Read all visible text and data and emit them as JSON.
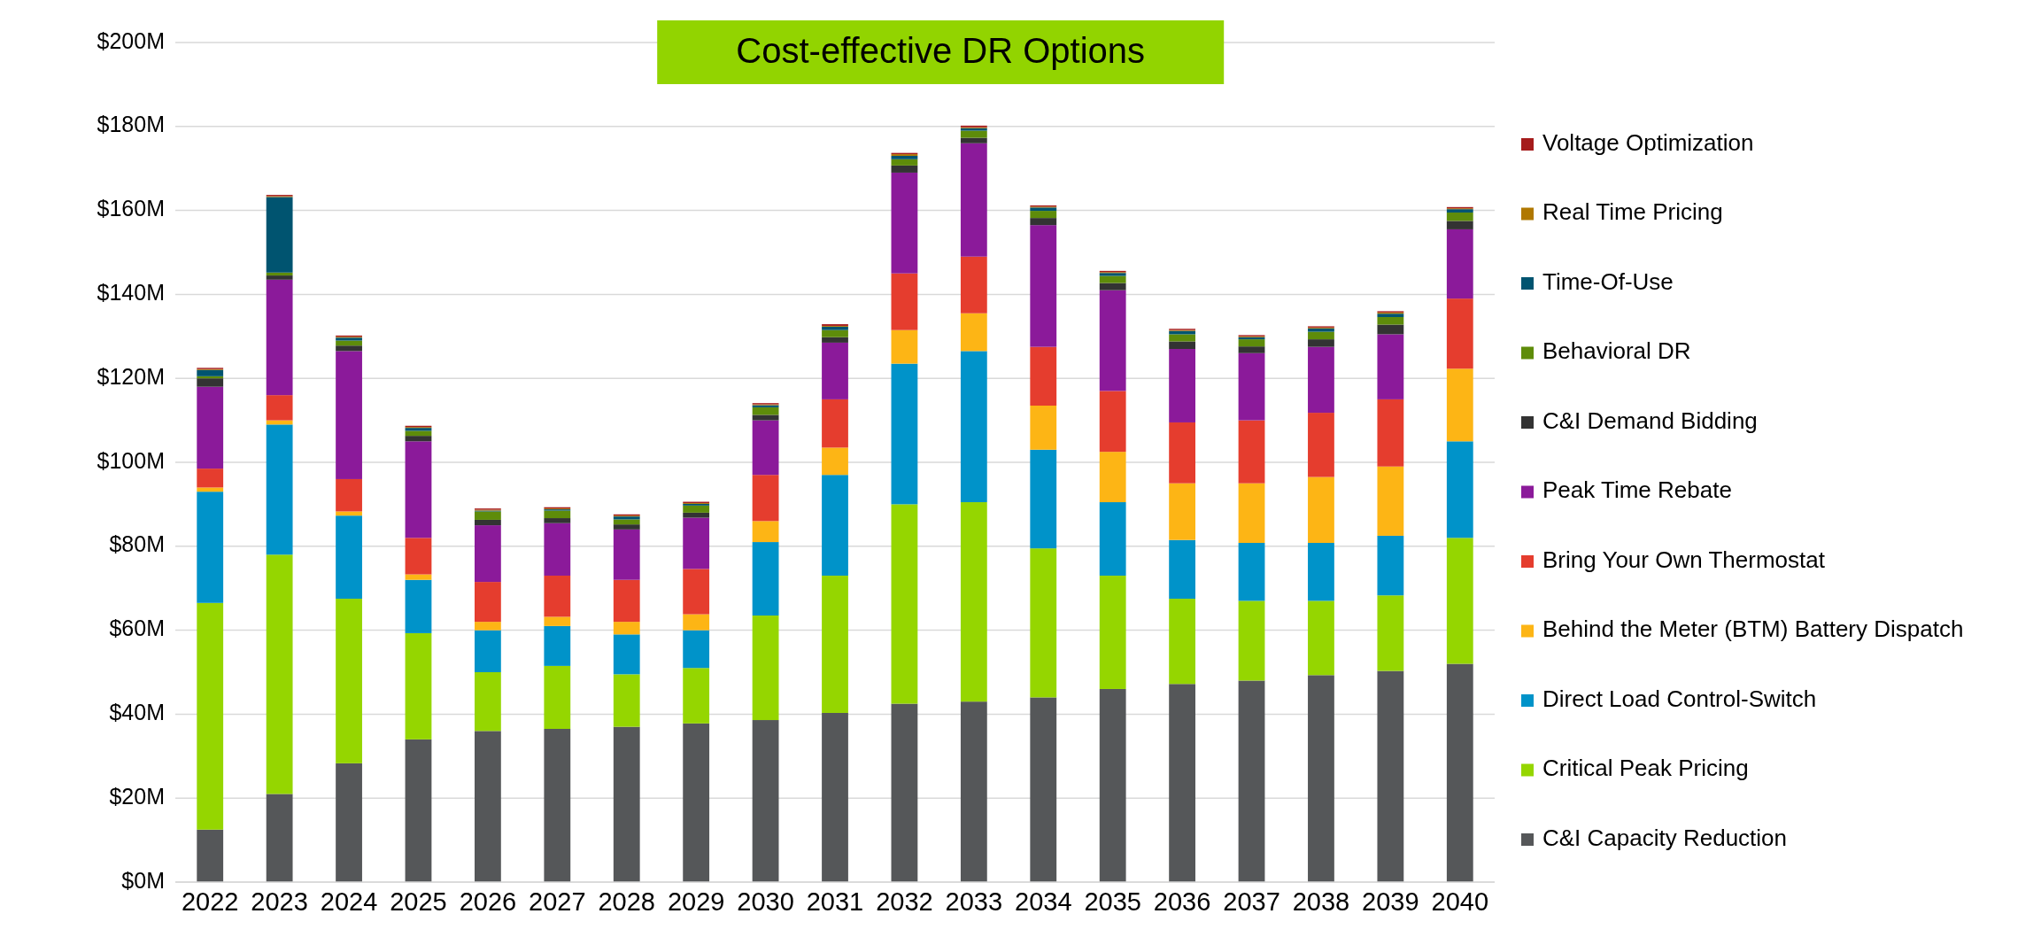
{
  "chart_data": {
    "type": "bar",
    "title": "Cost-effective DR Options",
    "stacked": true,
    "grid": "y",
    "legend": "right",
    "categories": [
      "2022",
      "2023",
      "2024",
      "2025",
      "2026",
      "2027",
      "2028",
      "2029",
      "2030",
      "2031",
      "2032",
      "2033",
      "2034",
      "2035",
      "2036",
      "2037",
      "2038",
      "2039",
      "2040"
    ],
    "ylim": [
      0,
      200
    ],
    "yticks": [
      {
        "value": 0,
        "label": "$0M"
      },
      {
        "value": 20,
        "label": "$20M"
      },
      {
        "value": 40,
        "label": "$40M"
      },
      {
        "value": 60,
        "label": "$60M"
      },
      {
        "value": 80,
        "label": "$80M"
      },
      {
        "value": 100,
        "label": "$100M"
      },
      {
        "value": 120,
        "label": "$120M"
      },
      {
        "value": 140,
        "label": "$140M"
      },
      {
        "value": 160,
        "label": "$160M"
      },
      {
        "value": 180,
        "label": "$180M"
      },
      {
        "value": 200,
        "label": "$200M"
      }
    ],
    "series": [
      {
        "name": "C&I Capacity Reduction",
        "color": "#555759",
        "values": [
          12.5,
          21,
          28.3,
          34,
          36,
          36.5,
          37,
          37.8,
          38.6,
          40.3,
          42.5,
          43,
          44,
          46,
          47.2,
          48,
          49.3,
          50.3,
          52
        ]
      },
      {
        "name": "Critical Peak Pricing",
        "color": "#95d600",
        "values": [
          54,
          57,
          39.2,
          25.3,
          14,
          15,
          12.5,
          13.2,
          24.9,
          32.7,
          47.5,
          47.5,
          35.5,
          27,
          20.3,
          19,
          17.7,
          18,
          30
        ]
      },
      {
        "name": "Direct Load Control-Switch",
        "color": "#0093c9",
        "values": [
          26.5,
          31,
          19.8,
          12.7,
          10,
          9.5,
          9.5,
          9,
          17.5,
          24,
          33.5,
          36,
          23.5,
          17.5,
          14,
          13.8,
          13.8,
          14.2,
          23
        ]
      },
      {
        "name": "Behind the Meter (BTM) Battery Dispatch",
        "color": "#fdb515",
        "values": [
          1,
          1,
          1,
          1.3,
          2,
          2.2,
          3,
          3.8,
          5,
          6.5,
          8,
          9,
          10.5,
          12,
          13.5,
          14.2,
          15.7,
          16.5,
          17.3
        ]
      },
      {
        "name": "Bring Your Own Thermostat",
        "color": "#e53d2e",
        "values": [
          4.5,
          6,
          7.7,
          8.7,
          9.5,
          9.8,
          10,
          10.8,
          11,
          11.5,
          13.5,
          13.5,
          14,
          14.5,
          14.5,
          15,
          15.3,
          16,
          16.7
        ]
      },
      {
        "name": "Peak Time Rebate",
        "color": "#8b1a9a",
        "values": [
          19.5,
          27.5,
          30.5,
          23,
          13.5,
          12.5,
          12,
          12.2,
          13,
          13.5,
          24,
          27,
          29,
          24,
          17.5,
          16,
          15.7,
          15.5,
          16.5
        ]
      },
      {
        "name": "C&I Demand Bidding",
        "color": "#333333",
        "values": [
          2,
          1,
          1.3,
          1.3,
          1.3,
          1.2,
          1.2,
          1.2,
          1.3,
          1.3,
          1.7,
          1.3,
          1.7,
          1.7,
          1.8,
          1.6,
          1.8,
          2.3,
          2
        ]
      },
      {
        "name": "Behavioral DR",
        "color": "#5e8c0a",
        "values": [
          0.5,
          0.7,
          1.2,
          1.2,
          2,
          1.8,
          1.2,
          1.7,
          1.8,
          1.7,
          1.5,
          1.7,
          1.7,
          1.7,
          1.7,
          1.7,
          1.8,
          1.8,
          2
        ]
      },
      {
        "name": "Time-Of-Use",
        "color": "#005470",
        "values": [
          1.5,
          18,
          0.7,
          0.7,
          0.2,
          0.3,
          0.7,
          0.4,
          0.5,
          0.8,
          0.8,
          0.6,
          0.8,
          0.7,
          0.8,
          0.5,
          0.8,
          0.8,
          0.8
        ]
      },
      {
        "name": "Real Time Pricing",
        "color": "#b07800",
        "values": [
          0.2,
          0.2,
          0.2,
          0.2,
          0.2,
          0.2,
          0.2,
          0.2,
          0.2,
          0.2,
          0.4,
          0.2,
          0.2,
          0.2,
          0.2,
          0.2,
          0.2,
          0.3,
          0.2
        ]
      },
      {
        "name": "Voltage Optimization",
        "color": "#a51c1c",
        "values": [
          0.3,
          0.3,
          0.3,
          0.3,
          0.3,
          0.3,
          0.3,
          0.3,
          0.3,
          0.4,
          0.3,
          0.4,
          0.3,
          0.3,
          0.3,
          0.3,
          0.3,
          0.3,
          0.3
        ]
      }
    ]
  }
}
